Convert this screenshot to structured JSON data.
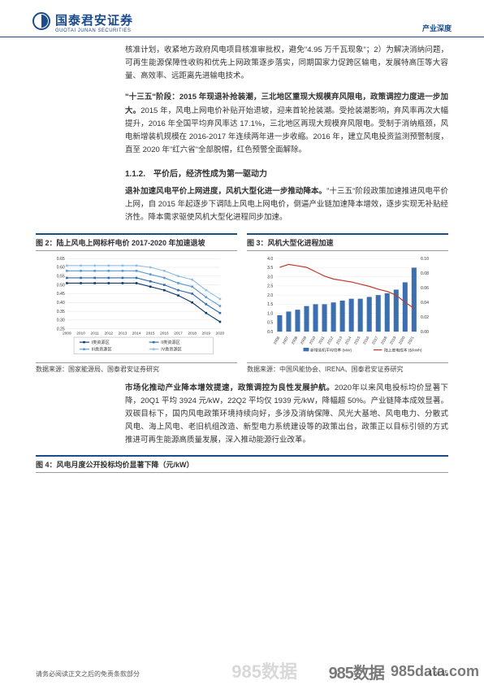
{
  "header": {
    "logo_cn": "国泰君安证券",
    "logo_en": "GUOTAI JUNAN SECURITIES",
    "right_label": "产业深度"
  },
  "body": {
    "p1": "核准计划，收紧地方政府风电项目核准审批权，避免\"4.95 万千瓦现象\"；2）为解决消纳问题，可再生能源保障性收购和优先上网政策逐步落实，同期国家力促跨区输电，发展特高压等大容量、高效率、远距离先进输电技术。",
    "p2_bold": "\"十三五\"阶段：2015 年现退补抢装潮，三北地区重现大规模弃风限电，政策调控力度进一步加大。",
    "p2_rest": "2015 年，风电上网电价补贴开始退坡，迎来首轮抢装潮。受抢装潮影响，弃风率再次大幅提升，2016 年全国平均弃风率达 17.1%，三北地区再现大规模弃风限电。受制于消纳瓶颈，风电新增装机规模在 2016-2017 年连续两年进一步收缩。2016 年，建立风电投资监测预警制度，直至 2020 年\"红六省\"全部脱帽，红色预警全面解除。",
    "sec_112": "1.1.2.　平价后，经济性成为第一驱动力",
    "p3_bold": "退补加速风电平价上网进度，风机大型化进一步推动降本。",
    "p3_rest": "\"十三五\"阶段政策加速推进风电平价上网，自 2015 年起逐步下调陆上风电上网电价，倒逼产业链加速降本增效，逐步实现无补贴经济性。降本需求驱使风机大型化进程同步加速。",
    "p4_bold": "市场化推动产业降本增效提速，政策调控为良性发展护航。",
    "p4_rest": "2020年以来风电投标均价显著下降，20Q1 平均 3924 元/kW，22Q2 平均仅 1939 元/kW，降幅超 50%。产业链降本成效显著。双碳目标下，国内风电政策环境持续向好，多涉及消纳保障、风光大基地、风电电力、分散式风电、海上风电、老旧机组改造、新型电力系统建设等的政策出台，政策正以目标引领的方式推进可再生能源高质量发展，深入推动能源行业改革。"
  },
  "chart2": {
    "title": "图 2：陆上风电上网标杆电价 2017-2020 年加速退坡",
    "source": "数据来源：国家能源局、国泰君安证券研究",
    "x_labels": [
      "2009",
      "2010",
      "2011",
      "2012",
      "2013",
      "2014",
      "2015",
      "2016",
      "2017",
      "2018",
      "2019",
      "2020"
    ],
    "y_min": 0.25,
    "y_max": 0.65,
    "y_step": 0.05,
    "series": [
      {
        "name": "I类资源区",
        "color": "#0a3a6b",
        "values": [
          0.51,
          0.51,
          0.51,
          0.51,
          0.51,
          0.51,
          0.49,
          0.47,
          0.44,
          0.4,
          0.34,
          0.29
        ]
      },
      {
        "name": "II类资源区",
        "color": "#2b6bb0",
        "values": [
          0.54,
          0.54,
          0.54,
          0.54,
          0.54,
          0.54,
          0.52,
          0.5,
          0.47,
          0.45,
          0.39,
          0.34
        ]
      },
      {
        "name": "III类资源区",
        "color": "#5a99d4",
        "values": [
          0.58,
          0.58,
          0.58,
          0.58,
          0.58,
          0.58,
          0.56,
          0.54,
          0.51,
          0.49,
          0.43,
          0.38
        ]
      },
      {
        "name": "IV类资源区",
        "color": "#8fbfe8",
        "values": [
          0.61,
          0.61,
          0.61,
          0.61,
          0.61,
          0.61,
          0.6,
          0.58,
          0.55,
          0.53,
          0.47,
          0.42
        ]
      }
    ]
  },
  "chart3": {
    "title": "图 3：风机大型化进程加速",
    "source": "数据来源：中国风能协会、IRENA、国泰君安证券研究",
    "x_labels": [
      "06",
      "07",
      "08",
      "09",
      "10",
      "11",
      "12",
      "13",
      "14",
      "15",
      "16",
      "17",
      "18",
      "19",
      "20",
      "21"
    ],
    "left_y_min": 0,
    "left_y_max": 4.0,
    "left_y_step": 0.5,
    "right_y_min": 0,
    "right_y_max": 0.1,
    "right_y_step": 0.02,
    "bar": {
      "name": "新增装机平均功率 (MW)",
      "color": "#3b6fb0",
      "values": [
        0.9,
        1.1,
        1.2,
        1.4,
        1.5,
        1.5,
        1.6,
        1.7,
        1.8,
        1.8,
        1.9,
        2.0,
        2.1,
        2.3,
        2.7,
        3.5
      ]
    },
    "line": {
      "name": "陆上度电成本 ($/kWh)",
      "color": "#c0392b",
      "values": [
        0.088,
        0.092,
        0.09,
        0.088,
        0.082,
        0.076,
        0.072,
        0.07,
        0.068,
        0.065,
        0.062,
        0.058,
        0.055,
        0.05,
        0.04,
        0.032
      ]
    }
  },
  "chart4": {
    "title": "图 4：风电月度公开投标均价显著下降（元/kW）"
  },
  "footer": {
    "left": "请务必阅读正文之后的免责条款部分",
    "right": "4 of 35"
  },
  "watermark": {
    "main": "985数据",
    "site": "985data.com"
  }
}
